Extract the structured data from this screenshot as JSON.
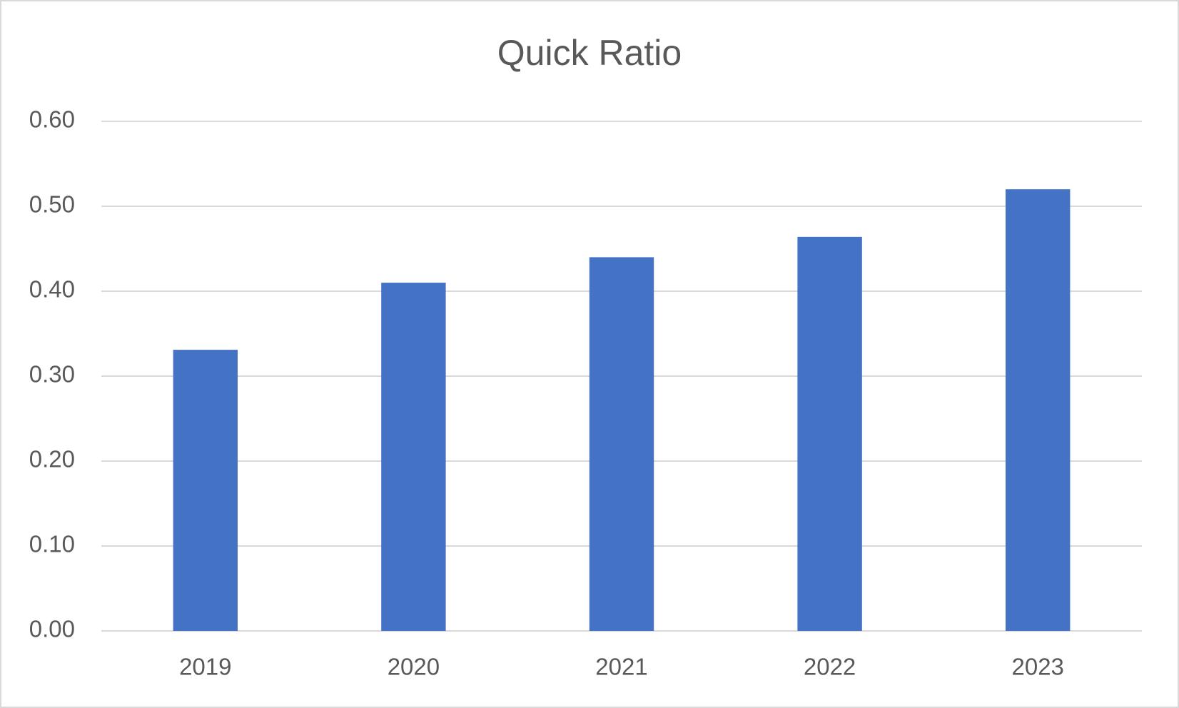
{
  "chart_data": {
    "type": "bar",
    "title": "Quick Ratio",
    "categories": [
      "2019",
      "2020",
      "2021",
      "2022",
      "2023"
    ],
    "values": [
      0.331,
      0.41,
      0.44,
      0.464,
      0.52
    ],
    "color": "#4472c4",
    "ylim": [
      0,
      0.6
    ],
    "yticks": [
      {
        "value": 0,
        "label": "0.00"
      },
      {
        "value": 0.1,
        "label": "0.10"
      },
      {
        "value": 0.2,
        "label": "0.20"
      },
      {
        "value": 0.3,
        "label": "0.30"
      },
      {
        "value": 0.4,
        "label": "0.40"
      },
      {
        "value": 0.5,
        "label": "0.50"
      },
      {
        "value": 0.6,
        "label": "0.60"
      }
    ],
    "grid": true
  }
}
